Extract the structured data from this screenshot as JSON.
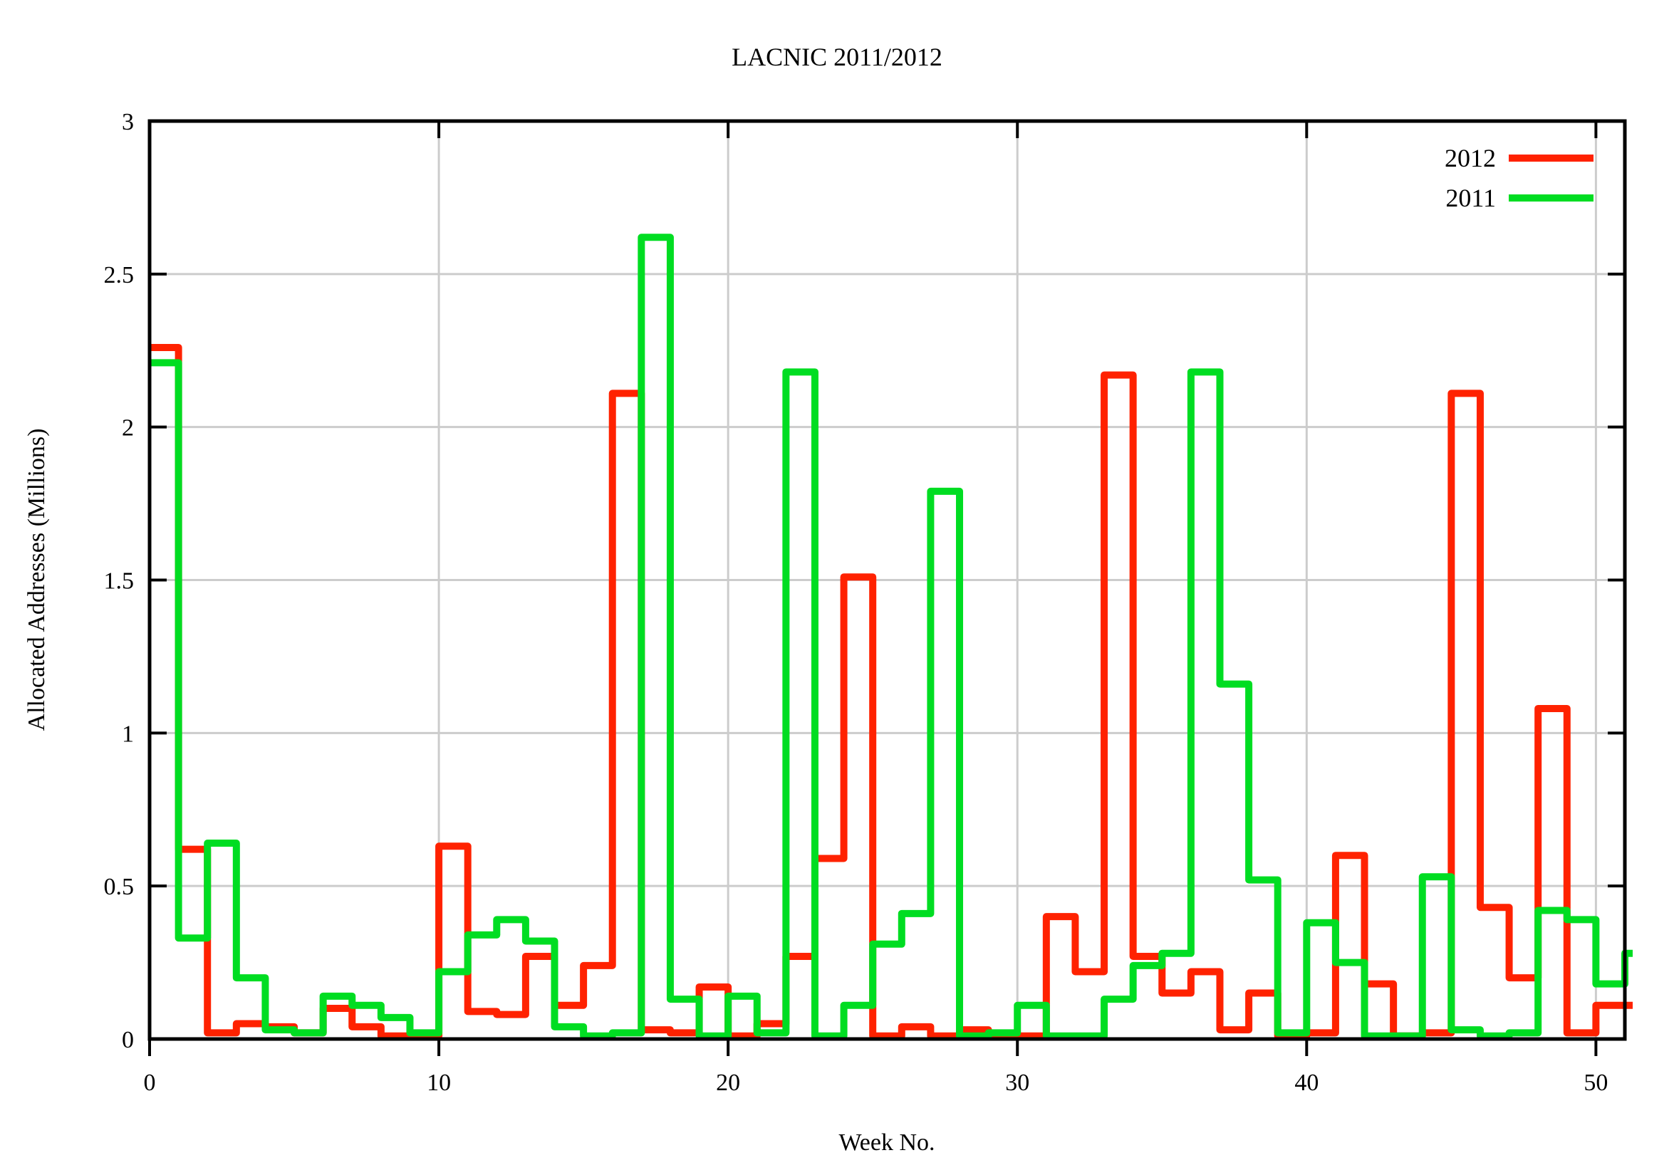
{
  "title": "LACNIC 2011/2012",
  "chart_data": {
    "type": "line",
    "line_style": "steps",
    "title": "LACNIC 2011/2012",
    "xlabel": "Week No.",
    "ylabel": "Allocated Addresses (Millions)",
    "xlim": [
      0,
      51
    ],
    "ylim": [
      0,
      3
    ],
    "xticks": [
      0,
      10,
      20,
      30,
      40,
      50
    ],
    "ytick_labels": [
      "0",
      "0.5",
      "1",
      "1.5",
      "2",
      "2.5",
      "3"
    ],
    "grid": true,
    "grid_color": "#cccccc",
    "background_color": "#ffffff",
    "border_color": "#000000",
    "legend_position": "top-right-inside",
    "x_unit": "week",
    "series": [
      {
        "name": "2012",
        "color": "#ff2200",
        "x_start": 0,
        "values": [
          2.26,
          0.62,
          0.02,
          0.05,
          0.04,
          0.02,
          0.1,
          0.04,
          0.01,
          0.01,
          0.63,
          0.09,
          0.08,
          0.27,
          0.11,
          0.24,
          2.11,
          0.03,
          0.02,
          0.17,
          0.01,
          0.05,
          0.27,
          0.59,
          1.51,
          0.01,
          0.04,
          0.01,
          0.03,
          0.01,
          0.01,
          0.4,
          0.22,
          2.17,
          0.27,
          0.15,
          0.22,
          0.03,
          0.15,
          0.01,
          0.02,
          0.6,
          0.18,
          0.01,
          0.02,
          2.11,
          0.43,
          0.2,
          1.08,
          0.02,
          0.11,
          0.11
        ]
      },
      {
        "name": "2011",
        "color": "#00dd22",
        "x_start": 0,
        "values": [
          2.21,
          0.33,
          0.64,
          0.2,
          0.03,
          0.02,
          0.14,
          0.11,
          0.07,
          0.02,
          0.22,
          0.34,
          0.39,
          0.32,
          0.04,
          0.01,
          0.02,
          2.62,
          0.13,
          0.01,
          0.14,
          0.02,
          2.18,
          0.01,
          0.11,
          0.31,
          0.41,
          1.79,
          0.01,
          0.02,
          0.11,
          0.01,
          0.01,
          0.13,
          0.24,
          0.28,
          2.18,
          1.16,
          0.52,
          0.02,
          0.38,
          0.25,
          0.01,
          0.01,
          0.53,
          0.03,
          0.01,
          0.02,
          0.42,
          0.39,
          0.18,
          0.28
        ]
      }
    ]
  }
}
